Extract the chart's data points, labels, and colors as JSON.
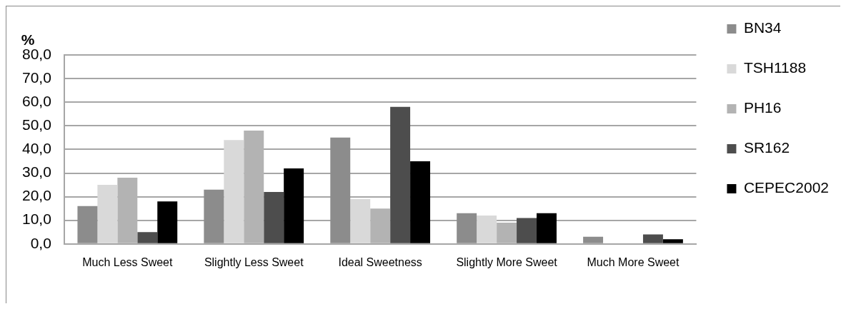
{
  "chart_data": {
    "type": "bar",
    "ylabel": "%",
    "categories": [
      "Much Less Sweet",
      "Slightly Less Sweet",
      "Ideal Sweetness",
      "Slightly More Sweet",
      "Much More Sweet"
    ],
    "series": [
      {
        "name": "BN34",
        "color": "#8c8c8c",
        "values": [
          16,
          23,
          45,
          13,
          3
        ]
      },
      {
        "name": "TSH1188",
        "color": "#d9d9d9",
        "values": [
          25,
          44,
          19,
          12,
          0
        ]
      },
      {
        "name": "PH16",
        "color": "#b3b3b3",
        "values": [
          28,
          48,
          15,
          9,
          0
        ]
      },
      {
        "name": "SR162",
        "color": "#4d4d4d",
        "values": [
          5,
          22,
          58,
          11,
          4
        ]
      },
      {
        "name": "CEPEC2002",
        "color": "#000000",
        "values": [
          18,
          32,
          35,
          13,
          2
        ]
      }
    ],
    "ylim": [
      0,
      80
    ],
    "yticks": [
      {
        "value": 0,
        "label": "0,0"
      },
      {
        "value": 10,
        "label": "10,0"
      },
      {
        "value": 20,
        "label": "20,0"
      },
      {
        "value": 30,
        "label": "30,0"
      },
      {
        "value": 40,
        "label": "40,0"
      },
      {
        "value": 50,
        "label": "50,0"
      },
      {
        "value": 60,
        "label": "60,0"
      },
      {
        "value": 70,
        "label": "70,0"
      },
      {
        "value": 80,
        "label": "80,0"
      }
    ],
    "grid": "y",
    "legend": "right"
  }
}
